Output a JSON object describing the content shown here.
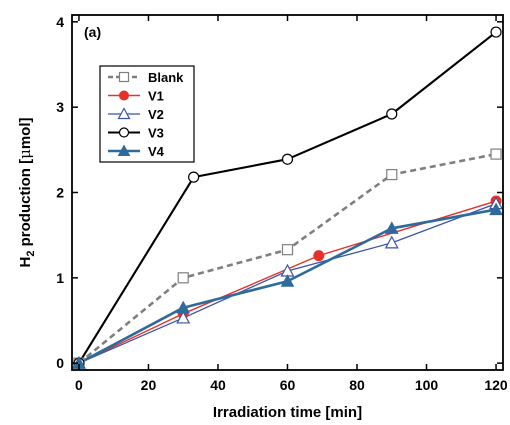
{
  "chart_data": {
    "type": "line",
    "panel_label": "(a)",
    "xlabel": "Irradiation time [min]",
    "ylabel": {
      "prefix": "H",
      "subscript": "2",
      "rest": " production [",
      "mu": "μ",
      "unit": "mol]"
    },
    "xlim": [
      -2,
      122
    ],
    "ylim": [
      -0.08,
      4.08
    ],
    "x_ticks": [
      0,
      20,
      40,
      60,
      80,
      100,
      120
    ],
    "y_ticks": [
      0,
      1,
      2,
      3,
      4
    ],
    "grid": false,
    "legend_position": "top-left",
    "series": [
      {
        "name": "Blank",
        "color": "#7f7f7f",
        "dash": "dashed",
        "marker": "square-open",
        "x": [
          0,
          30,
          60,
          90,
          120
        ],
        "y": [
          0,
          1.0,
          1.33,
          2.21,
          2.45
        ]
      },
      {
        "name": "V1",
        "color": "#e8302a",
        "dash": "solid",
        "marker": "circle-filled",
        "x": [
          0,
          30,
          69,
          120
        ],
        "y": [
          0,
          0.58,
          1.26,
          1.9
        ]
      },
      {
        "name": "V2",
        "color": "#3a55a8",
        "dash": "solid",
        "marker": "triangle-open",
        "x": [
          0,
          30,
          60,
          90,
          120
        ],
        "y": [
          0,
          0.53,
          1.08,
          1.41,
          1.87
        ]
      },
      {
        "name": "V3",
        "color": "#000000",
        "dash": "solid",
        "marker": "circle-open",
        "x": [
          0,
          33,
          60,
          90,
          120
        ],
        "y": [
          0,
          2.18,
          2.39,
          2.92,
          3.88
        ]
      },
      {
        "name": "V4",
        "color": "#2f6b9a",
        "dash": "solid",
        "marker": "triangle-filled",
        "x": [
          0,
          30,
          60,
          90,
          120
        ],
        "y": [
          0,
          0.65,
          0.96,
          1.58,
          1.8
        ]
      }
    ]
  }
}
